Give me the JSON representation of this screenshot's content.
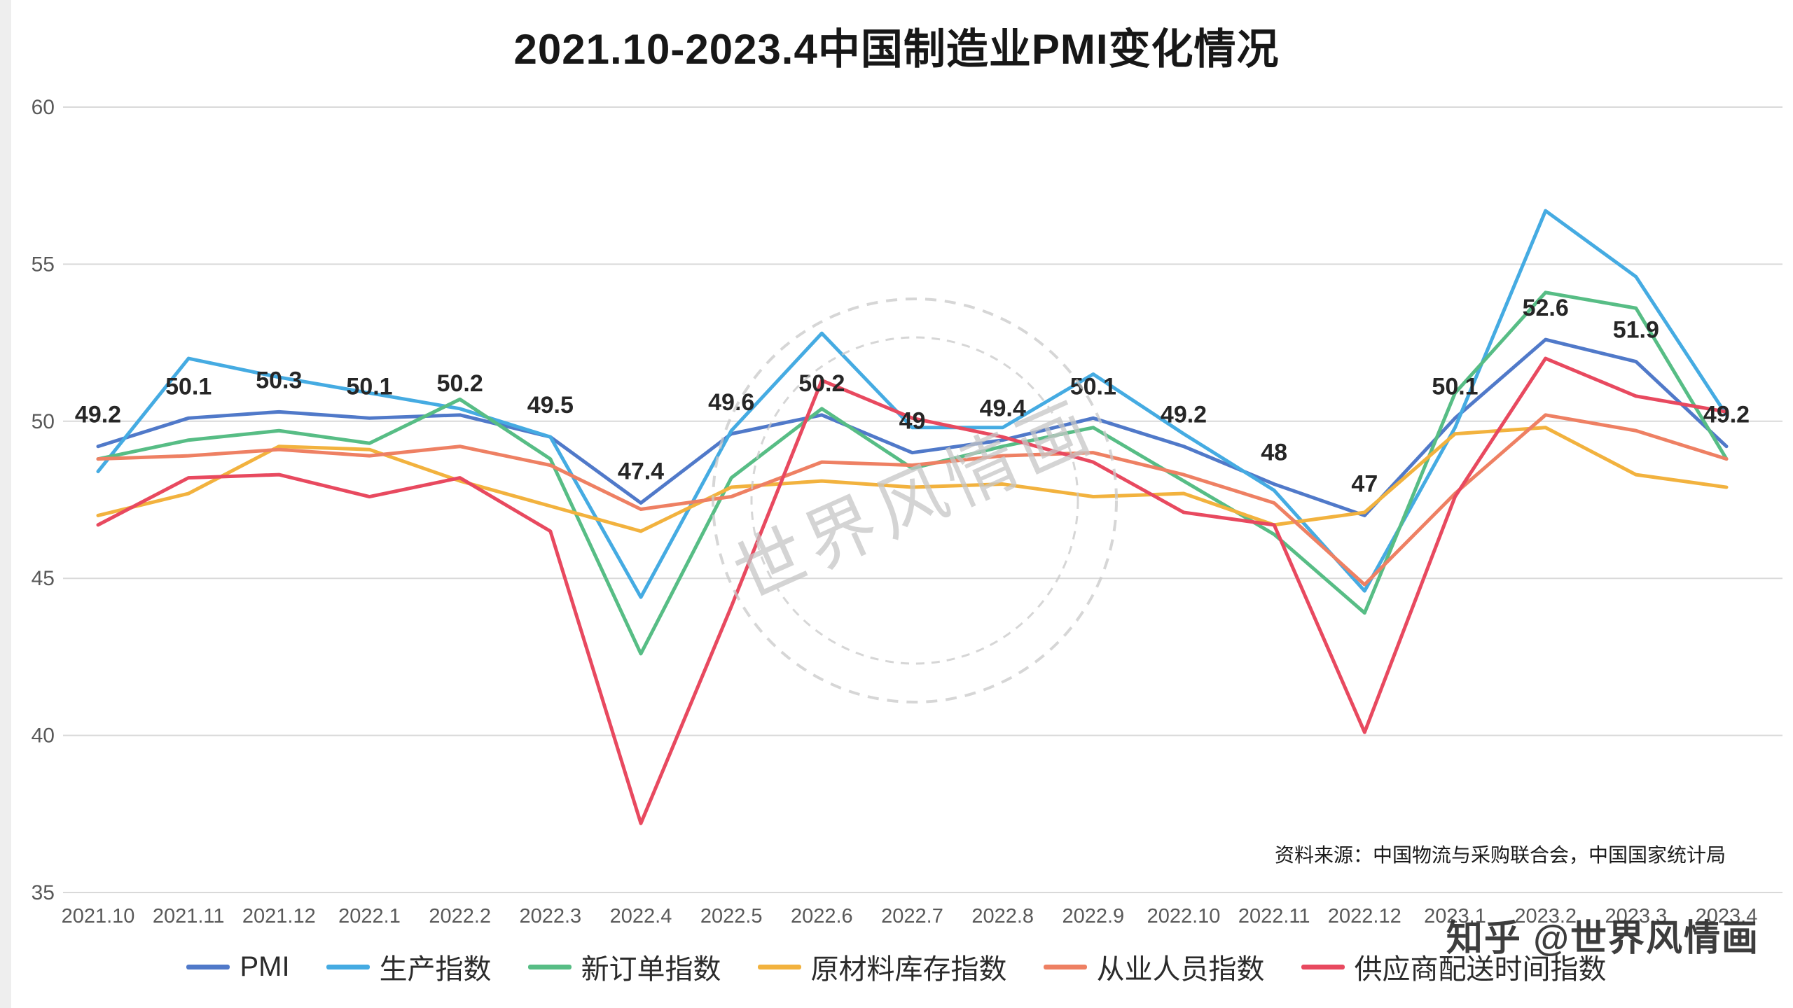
{
  "title": "2021.10-2023.4中国制造业PMI变化情况",
  "source_note": "资料来源：中国物流与采购联合会，中国国家统计局",
  "watermark": {
    "stamp_text": "世界风情画",
    "credit": "知乎 @世界风情画"
  },
  "axis": {
    "y_tick_labels": [
      "60",
      "55",
      "50",
      "45",
      "40",
      "35"
    ]
  },
  "chart_data": {
    "type": "line",
    "title": "2021.10-2023.4中国制造业PMI变化情况",
    "ylim": [
      35,
      60
    ],
    "yticks": [
      35,
      40,
      45,
      50,
      55,
      60
    ],
    "grid": true,
    "legend_position": "bottom",
    "categories": [
      "2021.10",
      "2021.11",
      "2021.12",
      "2022.1",
      "2022.2",
      "2022.3",
      "2022.4",
      "2022.5",
      "2022.6",
      "2022.7",
      "2022.8",
      "2022.9",
      "2022.10",
      "2022.11",
      "2022.12",
      "2023.1",
      "2023.2",
      "2023.3",
      "2023.4"
    ],
    "series": [
      {
        "name": "PMI",
        "color": "#5079c9",
        "values": [
          49.2,
          50.1,
          50.3,
          50.1,
          50.2,
          49.5,
          47.4,
          49.6,
          50.2,
          49.0,
          49.4,
          50.1,
          49.2,
          48.0,
          47.0,
          50.1,
          52.6,
          51.9,
          49.2
        ],
        "point_labels": [
          "49.2",
          "50.1",
          "50.3",
          "50.1",
          "50.2",
          "49.5",
          "47.4",
          "49.6",
          "50.2",
          "49",
          "49.4",
          "50.1",
          "49.2",
          "48",
          "47",
          "50.1",
          "52.6",
          "51.9",
          "49.2"
        ]
      },
      {
        "name": "生产指数",
        "color": "#45abe2",
        "values": [
          48.4,
          52.0,
          51.4,
          50.9,
          50.4,
          49.5,
          44.4,
          49.7,
          52.8,
          49.8,
          49.8,
          51.5,
          49.6,
          47.8,
          44.6,
          49.8,
          56.7,
          54.6,
          50.2
        ]
      },
      {
        "name": "新订单指数",
        "color": "#57bd85",
        "values": [
          48.8,
          49.4,
          49.7,
          49.3,
          50.7,
          48.8,
          42.6,
          48.2,
          50.4,
          48.5,
          49.2,
          49.8,
          48.1,
          46.4,
          43.9,
          50.9,
          54.1,
          53.6,
          48.8
        ]
      },
      {
        "name": "原材料库存指数",
        "color": "#f2b23e",
        "values": [
          47.0,
          47.7,
          49.2,
          49.1,
          48.1,
          47.3,
          46.5,
          47.9,
          48.1,
          47.9,
          48.0,
          47.6,
          47.7,
          46.7,
          47.1,
          49.6,
          49.8,
          48.3,
          47.9
        ]
      },
      {
        "name": "从业人员指数",
        "color": "#ee8063",
        "values": [
          48.8,
          48.9,
          49.1,
          48.9,
          49.2,
          48.6,
          47.2,
          47.6,
          48.7,
          48.6,
          48.9,
          49.0,
          48.3,
          47.4,
          44.8,
          47.7,
          50.2,
          49.7,
          48.8
        ]
      },
      {
        "name": "供应商配送时间指数",
        "color": "#e8495f",
        "values": [
          46.7,
          48.2,
          48.3,
          47.6,
          48.2,
          46.5,
          37.2,
          44.1,
          51.3,
          50.1,
          49.5,
          48.7,
          47.1,
          46.7,
          40.1,
          47.6,
          52.0,
          50.8,
          50.3
        ]
      }
    ]
  }
}
